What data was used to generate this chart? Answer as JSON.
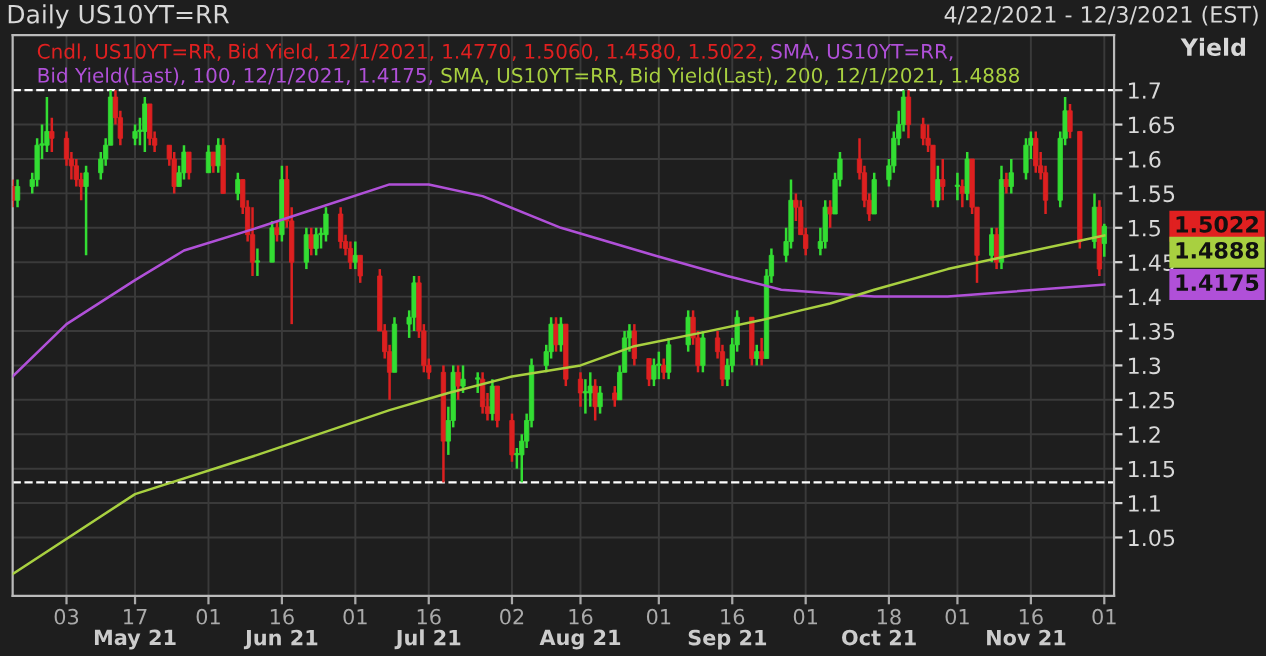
{
  "chart_data": {
    "type": "candlestick",
    "title": "Daily US10YT=RR",
    "subtitle": "4/22/2021 - 12/3/2021 (EST)",
    "ylabel": "Yield",
    "x": [
      "2021-04-22",
      "2021-04-23",
      "2021-04-26",
      "2021-04-27",
      "2021-04-28",
      "2021-04-29",
      "2021-04-30",
      "2021-05-03",
      "2021-05-04",
      "2021-05-05",
      "2021-05-06",
      "2021-05-07",
      "2021-05-10",
      "2021-05-11",
      "2021-05-12",
      "2021-05-13",
      "2021-05-14",
      "2021-05-17",
      "2021-05-18",
      "2021-05-19",
      "2021-05-20",
      "2021-05-21",
      "2021-05-24",
      "2021-05-25",
      "2021-05-26",
      "2021-05-27",
      "2021-05-28",
      "2021-06-01",
      "2021-06-02",
      "2021-06-03",
      "2021-06-04",
      "2021-06-07",
      "2021-06-08",
      "2021-06-09",
      "2021-06-10",
      "2021-06-11",
      "2021-06-14",
      "2021-06-15",
      "2021-06-16",
      "2021-06-17",
      "2021-06-18",
      "2021-06-21",
      "2021-06-22",
      "2021-06-23",
      "2021-06-24",
      "2021-06-25",
      "2021-06-28",
      "2021-06-29",
      "2021-06-30",
      "2021-07-01",
      "2021-07-02",
      "2021-07-06",
      "2021-07-07",
      "2021-07-08",
      "2021-07-09",
      "2021-07-12",
      "2021-07-13",
      "2021-07-14",
      "2021-07-15",
      "2021-07-16",
      "2021-07-19",
      "2021-07-20",
      "2021-07-21",
      "2021-07-22",
      "2021-07-23",
      "2021-07-26",
      "2021-07-27",
      "2021-07-28",
      "2021-07-29",
      "2021-07-30",
      "2021-08-02",
      "2021-08-03",
      "2021-08-04",
      "2021-08-05",
      "2021-08-06",
      "2021-08-09",
      "2021-08-10",
      "2021-08-11",
      "2021-08-12",
      "2021-08-13",
      "2021-08-16",
      "2021-08-17",
      "2021-08-18",
      "2021-08-19",
      "2021-08-20",
      "2021-08-23",
      "2021-08-24",
      "2021-08-25",
      "2021-08-26",
      "2021-08-27",
      "2021-08-30",
      "2021-08-31",
      "2021-09-01",
      "2021-09-02",
      "2021-09-03",
      "2021-09-07",
      "2021-09-08",
      "2021-09-09",
      "2021-09-10",
      "2021-09-13",
      "2021-09-14",
      "2021-09-15",
      "2021-09-16",
      "2021-09-17",
      "2021-09-20",
      "2021-09-21",
      "2021-09-22",
      "2021-09-23",
      "2021-09-24",
      "2021-09-27",
      "2021-09-28",
      "2021-09-29",
      "2021-09-30",
      "2021-10-01",
      "2021-10-04",
      "2021-10-05",
      "2021-10-06",
      "2021-10-07",
      "2021-10-08",
      "2021-10-12",
      "2021-10-13",
      "2021-10-14",
      "2021-10-15",
      "2021-10-18",
      "2021-10-19",
      "2021-10-20",
      "2021-10-21",
      "2021-10-22",
      "2021-10-25",
      "2021-10-26",
      "2021-10-27",
      "2021-10-28",
      "2021-10-29",
      "2021-11-01",
      "2021-11-02",
      "2021-11-03",
      "2021-11-04",
      "2021-11-05",
      "2021-11-08",
      "2021-11-09",
      "2021-11-10",
      "2021-11-11",
      "2021-11-12",
      "2021-11-15",
      "2021-11-16",
      "2021-11-17",
      "2021-11-18",
      "2021-11-19",
      "2021-11-22",
      "2021-11-23",
      "2021-11-24",
      "2021-11-26",
      "2021-11-29",
      "2021-11-30",
      "2021-12-01"
    ],
    "series": [
      {
        "name": "Cndl, US10YT=RR, Bid Yield, 12/1/2021, 1.4770, 1.5060, 1.4580, 1.5022,",
        "color": "#e02020",
        "colors": [
          "#dd2020",
          "#33dd33",
          "#33dd33",
          "#33dd33",
          "#33dd33",
          "#33dd33",
          "#dd2020",
          "#dd2020",
          "#dd2020",
          "#dd2020",
          "#dd2020",
          "#33dd33",
          "#33dd33",
          "#33dd33",
          "#33dd33",
          "#dd2020",
          "#dd2020",
          "#33dd33",
          "#33dd33",
          "#33dd33",
          "#dd2020",
          "#dd2020",
          "#dd2020",
          "#dd2020",
          "#33dd33",
          "#33dd33",
          "#dd2020",
          "#33dd33",
          "#dd2020",
          "#33dd33",
          "#dd2020",
          "#33dd33",
          "#dd2020",
          "#dd2020",
          "#dd2020",
          "#33dd33",
          "#33dd33",
          "#dd2020",
          "#33dd33",
          "#dd2020",
          "#dd2020",
          "#33dd33",
          "#dd2020",
          "#33dd33",
          "#33dd33",
          "#33dd33",
          "#dd2020",
          "#dd2020",
          "#dd2020",
          "#33dd33",
          "#dd2020",
          "#dd2020",
          "#dd2020",
          "#dd2020",
          "#33dd33",
          "#33dd33",
          "#33dd33",
          "#dd2020",
          "#dd2020",
          "#dd2020",
          "#dd2020",
          "#33dd33",
          "#33dd33",
          "#dd2020",
          "#33dd33",
          "#33dd33",
          "#dd2020",
          "#dd2020",
          "#33dd33",
          "#dd2020",
          "#dd2020",
          "#33dd33",
          "#33dd33",
          "#33dd33",
          "#33dd33",
          "#33dd33",
          "#33dd33",
          "#dd2020",
          "#33dd33",
          "#dd2020",
          "#dd2020",
          "#33dd33",
          "#33dd33",
          "#dd2020",
          "#33dd33",
          "#dd2020",
          "#33dd33",
          "#33dd33",
          "#33dd33",
          "#dd2020",
          "#dd2020",
          "#33dd33",
          "#33dd33",
          "#dd2020",
          "#33dd33",
          "#33dd33",
          "#dd2020",
          "#dd2020",
          "#33dd33",
          "#dd2020",
          "#dd2020",
          "#33dd33",
          "#33dd33",
          "#33dd33",
          "#dd2020",
          "#33dd33",
          "#dd2020",
          "#33dd33",
          "#33dd33",
          "#33dd33",
          "#33dd33",
          "#dd2020",
          "#dd2020",
          "#dd2020",
          "#33dd33",
          "#33dd33",
          "#dd2020",
          "#33dd33",
          "#33dd33",
          "#dd2020",
          "#dd2020",
          "#dd2020",
          "#33dd33",
          "#33dd33",
          "#33dd33",
          "#33dd33",
          "#33dd33",
          "#dd2020",
          "#dd2020",
          "#dd2020",
          "#dd2020",
          "#33dd33",
          "#dd2020",
          "#33dd33",
          "#dd2020",
          "#33dd33",
          "#dd2020",
          "#dd2020",
          "#33dd33",
          "#dd2020",
          "#33dd33",
          "#dd2020",
          "#33dd33",
          "#33dd33",
          "#33dd33",
          "#dd2020",
          "#dd2020",
          "#dd2020",
          "#33dd33",
          "#33dd33",
          "#dd2020",
          "#dd2020",
          "#33dd33",
          "#dd2020",
          "#33dd33"
        ],
        "ohlc": [
          [
            1.56,
            1.57,
            1.53,
            1.54
          ],
          [
            1.54,
            1.57,
            1.53,
            1.56
          ],
          [
            1.56,
            1.58,
            1.55,
            1.57
          ],
          [
            1.57,
            1.63,
            1.56,
            1.62
          ],
          [
            1.62,
            1.65,
            1.6,
            1.62
          ],
          [
            1.62,
            1.69,
            1.61,
            1.64
          ],
          [
            1.64,
            1.66,
            1.61,
            1.63
          ],
          [
            1.63,
            1.64,
            1.59,
            1.6
          ],
          [
            1.6,
            1.61,
            1.57,
            1.59
          ],
          [
            1.59,
            1.6,
            1.56,
            1.57
          ],
          [
            1.57,
            1.58,
            1.54,
            1.56
          ],
          [
            1.56,
            1.59,
            1.46,
            1.58
          ],
          [
            1.58,
            1.61,
            1.57,
            1.6
          ],
          [
            1.6,
            1.63,
            1.59,
            1.62
          ],
          [
            1.62,
            1.7,
            1.62,
            1.69
          ],
          [
            1.69,
            1.7,
            1.65,
            1.66
          ],
          [
            1.66,
            1.67,
            1.62,
            1.63
          ],
          [
            1.63,
            1.65,
            1.62,
            1.64
          ],
          [
            1.64,
            1.66,
            1.62,
            1.64
          ],
          [
            1.64,
            1.69,
            1.61,
            1.68
          ],
          [
            1.68,
            1.68,
            1.62,
            1.63
          ],
          [
            1.63,
            1.64,
            1.61,
            1.62
          ],
          [
            1.62,
            1.62,
            1.59,
            1.6
          ],
          [
            1.6,
            1.61,
            1.55,
            1.56
          ],
          [
            1.56,
            1.59,
            1.56,
            1.58
          ],
          [
            1.58,
            1.62,
            1.57,
            1.61
          ],
          [
            1.61,
            1.61,
            1.57,
            1.58
          ],
          [
            1.58,
            1.62,
            1.58,
            1.61
          ],
          [
            1.61,
            1.61,
            1.58,
            1.59
          ],
          [
            1.59,
            1.63,
            1.58,
            1.62
          ],
          [
            1.62,
            1.63,
            1.55,
            1.55
          ],
          [
            1.55,
            1.58,
            1.54,
            1.57
          ],
          [
            1.57,
            1.57,
            1.52,
            1.53
          ],
          [
            1.53,
            1.54,
            1.48,
            1.49
          ],
          [
            1.49,
            1.53,
            1.43,
            1.45
          ],
          [
            1.45,
            1.47,
            1.43,
            1.45
          ],
          [
            1.45,
            1.51,
            1.45,
            1.5
          ],
          [
            1.5,
            1.51,
            1.48,
            1.49
          ],
          [
            1.49,
            1.59,
            1.48,
            1.57
          ],
          [
            1.57,
            1.59,
            1.5,
            1.51
          ],
          [
            1.51,
            1.53,
            1.36,
            1.45
          ],
          [
            1.45,
            1.5,
            1.44,
            1.49
          ],
          [
            1.49,
            1.5,
            1.46,
            1.47
          ],
          [
            1.47,
            1.5,
            1.46,
            1.49
          ],
          [
            1.49,
            1.5,
            1.47,
            1.49
          ],
          [
            1.49,
            1.53,
            1.48,
            1.52
          ],
          [
            1.52,
            1.53,
            1.47,
            1.48
          ],
          [
            1.48,
            1.49,
            1.46,
            1.47
          ],
          [
            1.47,
            1.48,
            1.44,
            1.45
          ],
          [
            1.45,
            1.48,
            1.44,
            1.46
          ],
          [
            1.46,
            1.46,
            1.42,
            1.43
          ],
          [
            1.43,
            1.44,
            1.35,
            1.35
          ],
          [
            1.35,
            1.36,
            1.31,
            1.32
          ],
          [
            1.32,
            1.33,
            1.25,
            1.29
          ],
          [
            1.29,
            1.37,
            1.29,
            1.36
          ],
          [
            1.36,
            1.38,
            1.34,
            1.37
          ],
          [
            1.37,
            1.43,
            1.35,
            1.42
          ],
          [
            1.42,
            1.43,
            1.34,
            1.35
          ],
          [
            1.35,
            1.36,
            1.29,
            1.3
          ],
          [
            1.3,
            1.31,
            1.28,
            1.29
          ],
          [
            1.29,
            1.3,
            1.13,
            1.19
          ],
          [
            1.19,
            1.24,
            1.17,
            1.22
          ],
          [
            1.22,
            1.3,
            1.21,
            1.29
          ],
          [
            1.29,
            1.3,
            1.25,
            1.27
          ],
          [
            1.27,
            1.3,
            1.26,
            1.28
          ],
          [
            1.28,
            1.29,
            1.26,
            1.28
          ],
          [
            1.28,
            1.29,
            1.23,
            1.24
          ],
          [
            1.24,
            1.26,
            1.22,
            1.23
          ],
          [
            1.23,
            1.28,
            1.22,
            1.27
          ],
          [
            1.27,
            1.27,
            1.21,
            1.22
          ],
          [
            1.22,
            1.23,
            1.16,
            1.17
          ],
          [
            1.17,
            1.18,
            1.15,
            1.17
          ],
          [
            1.17,
            1.2,
            1.13,
            1.19
          ],
          [
            1.19,
            1.23,
            1.18,
            1.22
          ],
          [
            1.22,
            1.31,
            1.21,
            1.3
          ],
          [
            1.3,
            1.33,
            1.29,
            1.32
          ],
          [
            1.32,
            1.37,
            1.31,
            1.36
          ],
          [
            1.36,
            1.37,
            1.32,
            1.33
          ],
          [
            1.33,
            1.37,
            1.32,
            1.36
          ],
          [
            1.36,
            1.36,
            1.27,
            1.28
          ],
          [
            1.28,
            1.29,
            1.24,
            1.26
          ],
          [
            1.26,
            1.28,
            1.23,
            1.26
          ],
          [
            1.26,
            1.29,
            1.24,
            1.27
          ],
          [
            1.27,
            1.28,
            1.22,
            1.24
          ],
          [
            1.24,
            1.27,
            1.23,
            1.26
          ],
          [
            1.26,
            1.27,
            1.24,
            1.25
          ],
          [
            1.25,
            1.3,
            1.25,
            1.29
          ],
          [
            1.29,
            1.35,
            1.29,
            1.34
          ],
          [
            1.34,
            1.36,
            1.32,
            1.35
          ],
          [
            1.35,
            1.36,
            1.3,
            1.31
          ],
          [
            1.31,
            1.31,
            1.27,
            1.28
          ],
          [
            1.28,
            1.31,
            1.27,
            1.3
          ],
          [
            1.3,
            1.32,
            1.28,
            1.3
          ],
          [
            1.3,
            1.31,
            1.28,
            1.29
          ],
          [
            1.29,
            1.34,
            1.28,
            1.33
          ],
          [
            1.33,
            1.38,
            1.32,
            1.37
          ],
          [
            1.37,
            1.38,
            1.33,
            1.34
          ],
          [
            1.34,
            1.35,
            1.29,
            1.3
          ],
          [
            1.3,
            1.35,
            1.29,
            1.34
          ],
          [
            1.34,
            1.35,
            1.31,
            1.32
          ],
          [
            1.32,
            1.33,
            1.27,
            1.28
          ],
          [
            1.28,
            1.31,
            1.27,
            1.3
          ],
          [
            1.3,
            1.34,
            1.29,
            1.33
          ],
          [
            1.33,
            1.38,
            1.32,
            1.37
          ],
          [
            1.37,
            1.37,
            1.3,
            1.31
          ],
          [
            1.31,
            1.33,
            1.3,
            1.32
          ],
          [
            1.32,
            1.34,
            1.3,
            1.31
          ],
          [
            1.31,
            1.44,
            1.31,
            1.43
          ],
          [
            1.43,
            1.47,
            1.42,
            1.46
          ],
          [
            1.46,
            1.5,
            1.45,
            1.48
          ],
          [
            1.48,
            1.57,
            1.47,
            1.54
          ],
          [
            1.54,
            1.55,
            1.51,
            1.53
          ],
          [
            1.53,
            1.54,
            1.49,
            1.49
          ],
          [
            1.49,
            1.5,
            1.46,
            1.47
          ],
          [
            1.47,
            1.5,
            1.46,
            1.48
          ],
          [
            1.48,
            1.54,
            1.47,
            1.53
          ],
          [
            1.53,
            1.54,
            1.5,
            1.52
          ],
          [
            1.52,
            1.58,
            1.52,
            1.57
          ],
          [
            1.57,
            1.61,
            1.56,
            1.6
          ],
          [
            1.6,
            1.63,
            1.57,
            1.58
          ],
          [
            1.58,
            1.59,
            1.53,
            1.54
          ],
          [
            1.54,
            1.55,
            1.51,
            1.52
          ],
          [
            1.52,
            1.58,
            1.52,
            1.57
          ],
          [
            1.57,
            1.6,
            1.56,
            1.59
          ],
          [
            1.59,
            1.64,
            1.58,
            1.63
          ],
          [
            1.63,
            1.67,
            1.62,
            1.65
          ],
          [
            1.65,
            1.7,
            1.64,
            1.69
          ],
          [
            1.69,
            1.7,
            1.63,
            1.65
          ],
          [
            1.65,
            1.66,
            1.62,
            1.63
          ],
          [
            1.63,
            1.65,
            1.61,
            1.62
          ],
          [
            1.62,
            1.62,
            1.53,
            1.54
          ],
          [
            1.54,
            1.59,
            1.53,
            1.57
          ],
          [
            1.57,
            1.6,
            1.54,
            1.56
          ],
          [
            1.56,
            1.58,
            1.54,
            1.56
          ],
          [
            1.56,
            1.57,
            1.53,
            1.55
          ],
          [
            1.55,
            1.61,
            1.54,
            1.6
          ],
          [
            1.6,
            1.6,
            1.52,
            1.53
          ],
          [
            1.53,
            1.53,
            1.42,
            1.46
          ],
          [
            1.46,
            1.5,
            1.45,
            1.49
          ],
          [
            1.49,
            1.5,
            1.44,
            1.45
          ],
          [
            1.45,
            1.59,
            1.44,
            1.57
          ],
          [
            1.57,
            1.58,
            1.55,
            1.56
          ],
          [
            1.56,
            1.6,
            1.55,
            1.58
          ],
          [
            1.58,
            1.63,
            1.57,
            1.62
          ],
          [
            1.62,
            1.64,
            1.6,
            1.63
          ],
          [
            1.63,
            1.64,
            1.58,
            1.59
          ],
          [
            1.59,
            1.61,
            1.57,
            1.58
          ],
          [
            1.58,
            1.59,
            1.52,
            1.54
          ],
          [
            1.54,
            1.64,
            1.53,
            1.63
          ],
          [
            1.63,
            1.69,
            1.62,
            1.67
          ],
          [
            1.67,
            1.68,
            1.63,
            1.64
          ],
          [
            1.64,
            1.64,
            1.47,
            1.48
          ],
          [
            1.48,
            1.55,
            1.47,
            1.53
          ],
          [
            1.53,
            1.54,
            1.43,
            1.44
          ],
          [
            1.477,
            1.506,
            1.458,
            1.5022
          ]
        ]
      },
      {
        "name": "SMA, US10YT=RR, Bid Yield(Last), 100, 12/1/2021, 1.4175,",
        "type": "line",
        "color": "#b050d8",
        "x": [
          "2021-04-22",
          "2021-05-03",
          "2021-05-17",
          "2021-05-27",
          "2021-06-11",
          "2021-06-23",
          "2021-07-08",
          "2021-07-16",
          "2021-07-27",
          "2021-08-12",
          "2021-08-31",
          "2021-09-15",
          "2021-09-26",
          "2021-10-15",
          "2021-10-30",
          "2021-12-01"
        ],
        "values": [
          1.284,
          1.36,
          1.424,
          1.467,
          1.5,
          1.528,
          1.563,
          1.563,
          1.546,
          1.5,
          1.46,
          1.43,
          1.41,
          1.4,
          1.4,
          1.4175
        ]
      },
      {
        "name": "SMA, US10YT=RR, Bid Yield(Last), 200, 12/1/2021, 1.4888",
        "type": "line",
        "color": "#a8d040",
        "x": [
          "2021-04-22",
          "2021-05-17",
          "2021-06-11",
          "2021-07-08",
          "2021-07-20",
          "2021-08-02",
          "2021-08-16",
          "2021-08-27",
          "2021-09-10",
          "2021-09-22",
          "2021-09-30",
          "2021-10-06",
          "2021-10-15",
          "2021-10-30",
          "2021-11-12",
          "2021-12-01"
        ],
        "values": [
          0.997,
          1.113,
          1.17,
          1.235,
          1.26,
          1.284,
          1.3,
          1.328,
          1.348,
          1.366,
          1.38,
          1.39,
          1.41,
          1.44,
          1.46,
          1.4888
        ]
      }
    ],
    "xlim": [
      "2021-04-22",
      "2021-12-03"
    ],
    "xticks": [
      {
        "value": "2021-05-03",
        "label": "03"
      },
      {
        "value": "2021-05-17",
        "label": "17"
      },
      {
        "value": "2021-06-01",
        "label": "01"
      },
      {
        "value": "2021-06-16",
        "label": "16"
      },
      {
        "value": "2021-07-01",
        "label": "01"
      },
      {
        "value": "2021-07-16",
        "label": "16"
      },
      {
        "value": "2021-08-02",
        "label": "02"
      },
      {
        "value": "2021-08-16",
        "label": "16"
      },
      {
        "value": "2021-09-01",
        "label": "01"
      },
      {
        "value": "2021-09-16",
        "label": "16"
      },
      {
        "value": "2021-10-01",
        "label": "01"
      },
      {
        "value": "2021-10-18",
        "label": "18"
      },
      {
        "value": "2021-11-01",
        "label": "01"
      },
      {
        "value": "2021-11-16",
        "label": "16"
      },
      {
        "value": "2021-12-01",
        "label": "01"
      }
    ],
    "x2lim": [
      "2021-04-22",
      "2021-12-03"
    ],
    "x2ticks": [
      {
        "value": "2021-05-17",
        "label": "May 21"
      },
      {
        "value": "2021-06-16",
        "label": "Jun 21"
      },
      {
        "value": "2021-07-16",
        "label": "Jul 21"
      },
      {
        "value": "2021-08-16",
        "label": "Aug 21"
      },
      {
        "value": "2021-09-15",
        "label": "Sep 21"
      },
      {
        "value": "2021-10-16",
        "label": "Oct 21"
      },
      {
        "value": "2021-11-15",
        "label": "Nov 21"
      }
    ],
    "ylim": [
      0.965,
      1.78
    ],
    "yticks": [
      1.05,
      1.1,
      1.15,
      1.2,
      1.25,
      1.3,
      1.35,
      1.4,
      1.45,
      1.5,
      1.55,
      1.6,
      1.65,
      1.7
    ],
    "ref_lines": [
      {
        "axis": "y",
        "value": 1.7,
        "color": "#ffffff",
        "line_style": "dashed"
      },
      {
        "axis": "y",
        "value": 1.13,
        "color": "#ffffff",
        "line_style": "dashed"
      }
    ],
    "annotations": [
      "1.5022",
      "1.4888",
      "1.4175"
    ],
    "grid": true,
    "legend": "top"
  }
}
